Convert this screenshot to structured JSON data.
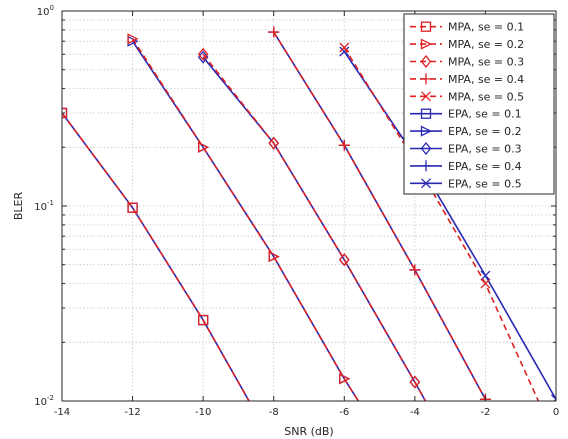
{
  "chart_data": {
    "type": "line",
    "xlabel": "SNR (dB)",
    "ylabel": "BLER",
    "xlim": [
      -14,
      0
    ],
    "ylim": [
      0.01,
      1
    ],
    "yscale": "log",
    "grid": true,
    "legend_position": "top-right",
    "x_ticks": [
      -14,
      -12,
      -10,
      -8,
      -6,
      -4,
      -2,
      0
    ],
    "x_tick_labels": [
      "-14",
      "-12",
      "-10",
      "-8",
      "-6",
      "-4",
      "-2",
      "0"
    ],
    "y_ticks": [
      {
        "value": 0.01,
        "base": "10",
        "exp": "-2"
      },
      {
        "value": 0.1,
        "base": "10",
        "exp": "-1"
      },
      {
        "value": 1,
        "base": "10",
        "exp": "0"
      }
    ],
    "series": [
      {
        "name": "MPA, se = 0.1",
        "color": "#e02020",
        "dash": true,
        "marker": "square",
        "x": [
          -14,
          -12,
          -10,
          -8.7
        ],
        "y": [
          0.3,
          0.098,
          0.026,
          0.01
        ]
      },
      {
        "name": "MPA, se = 0.2",
        "color": "#e02020",
        "dash": true,
        "marker": "triangle-right",
        "x": [
          -12,
          -10,
          -8,
          -6,
          -5.6
        ],
        "y": [
          0.72,
          0.2,
          0.055,
          0.013,
          0.01
        ]
      },
      {
        "name": "MPA, se = 0.3",
        "color": "#e02020",
        "dash": true,
        "marker": "diamond",
        "x": [
          -10,
          -8,
          -6,
          -4,
          -3.7
        ],
        "y": [
          0.6,
          0.21,
          0.053,
          0.0125,
          0.01
        ]
      },
      {
        "name": "MPA, se = 0.4",
        "color": "#e02020",
        "dash": true,
        "marker": "plus",
        "x": [
          -8,
          -6,
          -4,
          -2
        ],
        "y": [
          0.78,
          0.205,
          0.047,
          0.0102
        ]
      },
      {
        "name": "MPA, se = 0.5",
        "color": "#e02020",
        "dash": true,
        "marker": "x",
        "x": [
          -6,
          -4,
          -2,
          -0.5
        ],
        "y": [
          0.65,
          0.17,
          0.04,
          0.01
        ]
      },
      {
        "name": "EPA, se = 0.1",
        "color": "#2828b4",
        "dash": false,
        "marker": "square",
        "x": [
          -14,
          -12,
          -10,
          -8.7
        ],
        "y": [
          0.3,
          0.098,
          0.026,
          0.01
        ]
      },
      {
        "name": "EPA, se = 0.2",
        "color": "#2828b4",
        "dash": false,
        "marker": "triangle-right",
        "x": [
          -12,
          -10,
          -8,
          -6,
          -5.6
        ],
        "y": [
          0.7,
          0.2,
          0.055,
          0.013,
          0.01
        ]
      },
      {
        "name": "EPA, se = 0.3",
        "color": "#2828b4",
        "dash": false,
        "marker": "diamond",
        "x": [
          -10,
          -8,
          -6,
          -4,
          -3.7
        ],
        "y": [
          0.58,
          0.21,
          0.053,
          0.0125,
          0.01
        ]
      },
      {
        "name": "EPA, se = 0.4",
        "color": "#2828b4",
        "dash": false,
        "marker": "plus",
        "x": [
          -8,
          -6,
          -4,
          -2
        ],
        "y": [
          0.78,
          0.205,
          0.047,
          0.0102
        ]
      },
      {
        "name": "EPA, se = 0.5",
        "color": "#2828b4",
        "dash": false,
        "marker": "x",
        "x": [
          -6,
          -4,
          -2,
          0
        ],
        "y": [
          0.62,
          0.18,
          0.044,
          0.0102
        ]
      }
    ]
  }
}
